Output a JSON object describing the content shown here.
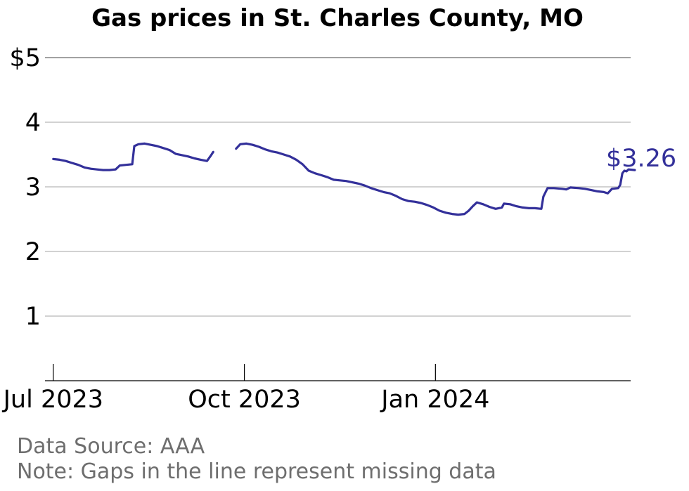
{
  "chart_data": {
    "type": "line",
    "title": "Gas prices in St. Charles County, MO",
    "xlabel": "",
    "ylabel": "",
    "ylim": [
      0,
      5
    ],
    "yticks": [
      {
        "value": 1,
        "label": "1"
      },
      {
        "value": 2,
        "label": "2"
      },
      {
        "value": 3,
        "label": "3"
      },
      {
        "value": 4,
        "label": "4"
      },
      {
        "value": 5,
        "label": "$5"
      }
    ],
    "xlim": [
      "2023-06-27",
      "2024-04-04"
    ],
    "xticks": [
      {
        "date": "2023-07-01",
        "label": "Jul 2023"
      },
      {
        "date": "2023-10-01",
        "label": "Oct 2023"
      },
      {
        "date": "2024-01-01",
        "label": "Jan 2024"
      }
    ],
    "grid": true,
    "line_color": "#33309a",
    "end_label": "$3.26",
    "series": [
      {
        "segments": [
          [
            [
              "2023-07-01",
              3.43
            ],
            [
              "2023-07-04",
              3.42
            ],
            [
              "2023-07-07",
              3.4
            ],
            [
              "2023-07-10",
              3.37
            ],
            [
              "2023-07-13",
              3.34
            ],
            [
              "2023-07-16",
              3.3
            ],
            [
              "2023-07-19",
              3.28
            ],
            [
              "2023-07-22",
              3.27
            ],
            [
              "2023-07-25",
              3.26
            ],
            [
              "2023-07-28",
              3.26
            ],
            [
              "2023-07-31",
              3.27
            ],
            [
              "2023-08-02",
              3.33
            ],
            [
              "2023-08-05",
              3.34
            ],
            [
              "2023-08-08",
              3.35
            ],
            [
              "2023-08-09",
              3.63
            ],
            [
              "2023-08-11",
              3.66
            ],
            [
              "2023-08-14",
              3.67
            ],
            [
              "2023-08-17",
              3.65
            ],
            [
              "2023-08-20",
              3.63
            ],
            [
              "2023-08-23",
              3.6
            ],
            [
              "2023-08-26",
              3.57
            ],
            [
              "2023-08-29",
              3.51
            ],
            [
              "2023-09-01",
              3.49
            ],
            [
              "2023-09-04",
              3.47
            ],
            [
              "2023-09-07",
              3.44
            ],
            [
              "2023-09-10",
              3.42
            ],
            [
              "2023-09-13",
              3.4
            ],
            [
              "2023-09-15",
              3.49
            ],
            [
              "2023-09-16",
              3.54
            ]
          ],
          [
            [
              "2023-09-27",
              3.59
            ],
            [
              "2023-09-29",
              3.66
            ],
            [
              "2023-10-02",
              3.67
            ],
            [
              "2023-10-05",
              3.65
            ],
            [
              "2023-10-08",
              3.62
            ],
            [
              "2023-10-11",
              3.58
            ],
            [
              "2023-10-14",
              3.55
            ],
            [
              "2023-10-17",
              3.53
            ],
            [
              "2023-10-20",
              3.5
            ],
            [
              "2023-10-23",
              3.47
            ],
            [
              "2023-10-26",
              3.42
            ],
            [
              "2023-10-29",
              3.35
            ],
            [
              "2023-11-01",
              3.25
            ],
            [
              "2023-11-04",
              3.21
            ],
            [
              "2023-11-07",
              3.18
            ],
            [
              "2023-11-10",
              3.15
            ],
            [
              "2023-11-13",
              3.11
            ],
            [
              "2023-11-16",
              3.1
            ],
            [
              "2023-11-19",
              3.09
            ],
            [
              "2023-11-22",
              3.07
            ],
            [
              "2023-11-25",
              3.05
            ],
            [
              "2023-11-28",
              3.02
            ],
            [
              "2023-12-01",
              2.98
            ],
            [
              "2023-12-04",
              2.95
            ],
            [
              "2023-12-07",
              2.92
            ],
            [
              "2023-12-10",
              2.9
            ],
            [
              "2023-12-13",
              2.86
            ],
            [
              "2023-12-16",
              2.81
            ],
            [
              "2023-12-19",
              2.78
            ],
            [
              "2023-12-22",
              2.77
            ],
            [
              "2023-12-25",
              2.75
            ],
            [
              "2023-12-28",
              2.72
            ],
            [
              "2023-12-31",
              2.68
            ],
            [
              "2024-01-03",
              2.63
            ],
            [
              "2024-01-06",
              2.6
            ],
            [
              "2024-01-09",
              2.58
            ],
            [
              "2024-01-12",
              2.57
            ],
            [
              "2024-01-15",
              2.58
            ],
            [
              "2024-01-17",
              2.63
            ],
            [
              "2024-01-19",
              2.7
            ],
            [
              "2024-01-21",
              2.76
            ],
            [
              "2024-01-24",
              2.73
            ],
            [
              "2024-01-27",
              2.69
            ],
            [
              "2024-01-30",
              2.66
            ],
            [
              "2024-02-02",
              2.68
            ],
            [
              "2024-02-03",
              2.74
            ],
            [
              "2024-02-06",
              2.73
            ],
            [
              "2024-02-09",
              2.7
            ],
            [
              "2024-02-12",
              2.68
            ],
            [
              "2024-02-15",
              2.67
            ],
            [
              "2024-02-18",
              2.67
            ],
            [
              "2024-02-21",
              2.66
            ],
            [
              "2024-02-22",
              2.85
            ],
            [
              "2024-02-24",
              2.98
            ],
            [
              "2024-02-27",
              2.98
            ],
            [
              "2024-03-02",
              2.97
            ],
            [
              "2024-03-04",
              2.96
            ],
            [
              "2024-03-06",
              2.99
            ],
            [
              "2024-03-10",
              2.98
            ],
            [
              "2024-03-13",
              2.97
            ],
            [
              "2024-03-16",
              2.95
            ],
            [
              "2024-03-19",
              2.93
            ],
            [
              "2024-03-22",
              2.92
            ],
            [
              "2024-03-24",
              2.9
            ],
            [
              "2024-03-26",
              2.97
            ],
            [
              "2024-03-29",
              2.98
            ],
            [
              "2024-03-30",
              3.03
            ],
            [
              "2024-03-31",
              3.21
            ],
            [
              "2024-04-01",
              3.25
            ],
            [
              "2024-04-02",
              3.24
            ],
            [
              "2024-04-03",
              3.27
            ],
            [
              "2024-04-06",
              3.26
            ]
          ]
        ]
      }
    ]
  },
  "footer": {
    "source": "Data Source: AAA",
    "note": "Note: Gaps in the line represent missing data"
  }
}
